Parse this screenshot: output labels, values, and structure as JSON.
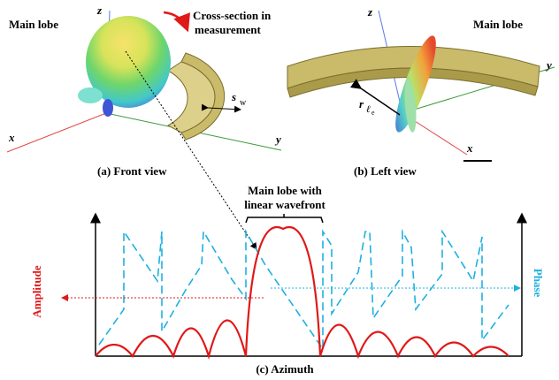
{
  "front_view": {
    "caption": "(a) Front view",
    "main_lobe": "Main lobe",
    "cross_section": [
      "Cross-section in",
      "measurement"
    ],
    "axis_x": "x",
    "axis_y": "y",
    "axis_z": "z",
    "width_symbol": "s",
    "width_subscript": "w"
  },
  "left_view": {
    "caption": "(b) Left view",
    "main_lobe": "Main lobe",
    "axis_x": "x",
    "axis_y": "y",
    "axis_z": "z",
    "radius_symbol": "r",
    "radius_subscript": "ℓ",
    "radius_subsubscript": "e"
  },
  "azimuth_plot": {
    "caption": "(c) Azimuth",
    "main_lobe_note": [
      "Main lobe with",
      "linear wavefront"
    ],
    "left_axis": "Amplitude",
    "right_axis": "Phase"
  }
}
